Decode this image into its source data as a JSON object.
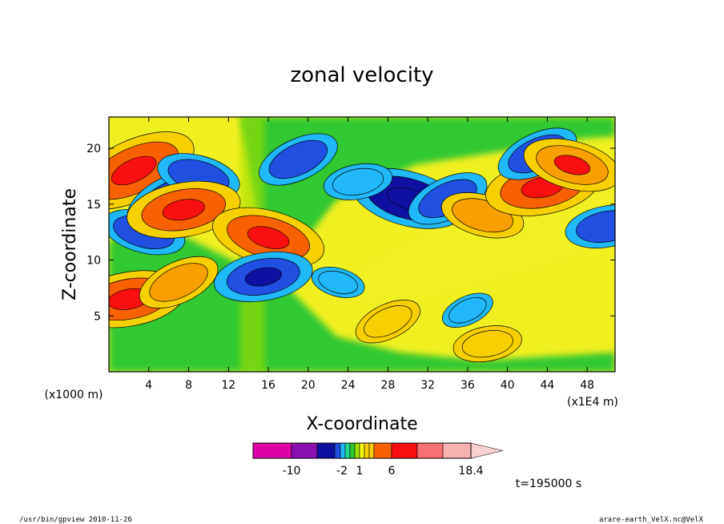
{
  "chart_data": {
    "type": "heatmap",
    "title": "zonal velocity",
    "xlabel": "X-coordinate",
    "ylabel": "Z-coordinate",
    "x_unit": "(x1E4 m)",
    "y_unit": "(x1000 m)",
    "x_ticks": [
      4,
      8,
      12,
      16,
      20,
      24,
      28,
      32,
      36,
      40,
      44,
      48
    ],
    "y_ticks": [
      5,
      10,
      15,
      20
    ],
    "xlim": [
      0,
      50.8
    ],
    "ylim": [
      0,
      22.8
    ],
    "colorbar": {
      "colors": [
        "#e000a8",
        "#8a10b0",
        "#1010a0",
        "#2050e0",
        "#20b8f8",
        "#20d890",
        "#30c830",
        "#a0e000",
        "#f8f800",
        "#f8d000",
        "#f8a000",
        "#f86000",
        "#f81010",
        "#f87070",
        "#f8b0b0",
        "#f8d0d0"
      ],
      "tick_labels": [
        "-10",
        "-2",
        "1",
        "6",
        "18.4"
      ]
    },
    "features": [
      {
        "x": 2.5,
        "z": 18.0,
        "value": 6
      },
      {
        "x": 3.5,
        "z": 12.5,
        "value": -3
      },
      {
        "x": 2.0,
        "z": 6.5,
        "value": 5
      },
      {
        "x": 6.5,
        "z": 15.5,
        "value": -4
      },
      {
        "x": 9.0,
        "z": 17.5,
        "value": -3
      },
      {
        "x": 7.5,
        "z": 14.5,
        "value": 5
      },
      {
        "x": 7.0,
        "z": 8.0,
        "value": 3
      },
      {
        "x": 16.0,
        "z": 12.0,
        "value": 5
      },
      {
        "x": 15.5,
        "z": 8.5,
        "value": -4
      },
      {
        "x": 19.0,
        "z": 19.0,
        "value": -3
      },
      {
        "x": 30.0,
        "z": 15.5,
        "value": -5
      },
      {
        "x": 25.0,
        "z": 17.0,
        "value": -2
      },
      {
        "x": 34.0,
        "z": 15.5,
        "value": -3
      },
      {
        "x": 37.5,
        "z": 14.0,
        "value": 3
      },
      {
        "x": 43.5,
        "z": 16.5,
        "value": 5
      },
      {
        "x": 43.0,
        "z": 19.5,
        "value": -3
      },
      {
        "x": 46.5,
        "z": 18.5,
        "value": 4
      },
      {
        "x": 50.0,
        "z": 13.0,
        "value": -3
      },
      {
        "x": 36.0,
        "z": 5.5,
        "value": -1
      },
      {
        "x": 23.0,
        "z": 8.0,
        "value": -1
      },
      {
        "x": 38.0,
        "z": 2.5,
        "value": 2
      },
      {
        "x": 28.0,
        "z": 4.5,
        "value": 2
      }
    ]
  },
  "annotations": {
    "time_label": "t=195000 s",
    "footer_left": "/usr/bin/gpview  2010-11-26",
    "footer_right": "arare-earth_VelX.nc@VelX"
  }
}
